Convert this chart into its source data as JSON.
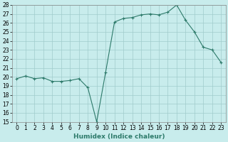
{
  "x": [
    0,
    1,
    2,
    3,
    4,
    5,
    6,
    7,
    8,
    9,
    10,
    11,
    12,
    13,
    14,
    15,
    16,
    17,
    18,
    19,
    20,
    21,
    22,
    23
  ],
  "y": [
    19.8,
    20.1,
    19.8,
    19.9,
    19.5,
    19.5,
    19.6,
    19.8,
    18.8,
    15.0,
    20.5,
    26.1,
    26.5,
    26.6,
    26.9,
    27.0,
    26.9,
    27.2,
    28.0,
    26.3,
    25.0,
    23.3,
    23.0,
    21.6
  ],
  "line_color": "#2d7a6a",
  "marker_color": "#2d7a6a",
  "bg_color": "#c8ecec",
  "grid_color": "#a0cccc",
  "xlabel": "Humidex (Indice chaleur)",
  "ylim": [
    15,
    28
  ],
  "yticks": [
    15,
    16,
    17,
    18,
    19,
    20,
    21,
    22,
    23,
    24,
    25,
    26,
    27,
    28
  ],
  "tick_fontsize": 5.5,
  "xlabel_fontsize": 6.5
}
